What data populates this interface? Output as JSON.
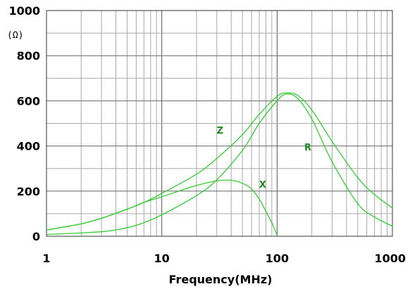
{
  "chart_data": {
    "type": "line",
    "title": "",
    "xlabel": "Frequency(MHz)",
    "ylabel_unit": "(Ω)",
    "x_scale": "log",
    "xlim": [
      1,
      1000
    ],
    "ylim": [
      0,
      1000
    ],
    "x_ticks": [
      "1",
      "10",
      "100",
      "1000"
    ],
    "y_ticks": [
      "0",
      "200",
      "400",
      "600",
      "800",
      "1000"
    ],
    "grid": true,
    "line_color": "#33cc33",
    "series": [
      {
        "name": "Z",
        "x": [
          1,
          2,
          3,
          5,
          7,
          10,
          20,
          30,
          50,
          70,
          100,
          120,
          150,
          200,
          300,
          500,
          700,
          1000
        ],
        "y": [
          28,
          55,
          80,
          120,
          150,
          190,
          275,
          345,
          450,
          540,
          620,
          635,
          625,
          560,
          420,
          260,
          185,
          125
        ]
      },
      {
        "name": "R",
        "x": [
          1,
          3,
          5,
          7,
          10,
          20,
          30,
          50,
          70,
          100,
          120,
          150,
          200,
          300,
          500,
          700,
          1000
        ],
        "y": [
          8,
          20,
          38,
          60,
          95,
          180,
          250,
          380,
          500,
          600,
          630,
          612,
          520,
          330,
          145,
          85,
          45
        ]
      },
      {
        "name": "X",
        "x": [
          1,
          2,
          3,
          5,
          7,
          10,
          20,
          30,
          40,
          50,
          60,
          70,
          80,
          90,
          100
        ],
        "y": [
          28,
          55,
          80,
          120,
          150,
          175,
          225,
          245,
          248,
          235,
          210,
          165,
          110,
          60,
          5
        ]
      }
    ],
    "labels": [
      {
        "text": "Z",
        "x": 32,
        "y": 455
      },
      {
        "text": "R",
        "x": 185,
        "y": 380
      },
      {
        "text": "X",
        "x": 75,
        "y": 215
      }
    ]
  }
}
